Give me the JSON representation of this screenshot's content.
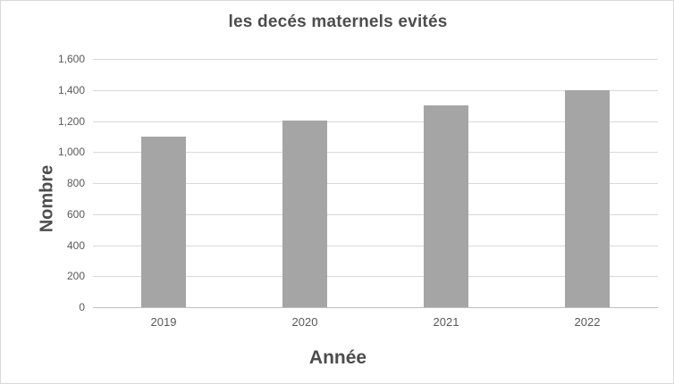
{
  "chart_data": {
    "type": "bar",
    "title": "les decés maternels evités",
    "xlabel": "Année",
    "ylabel": "Nombre",
    "categories": [
      "2019",
      "2020",
      "2021",
      "2022"
    ],
    "values": [
      1100,
      1200,
      1300,
      1400
    ],
    "ylim": [
      0,
      1600
    ],
    "ytick_interval": 200,
    "ytick_labels": [
      "0",
      "200",
      "400",
      "600",
      "800",
      "1,000",
      "1,200",
      "1,400",
      "1,600"
    ],
    "grid": true,
    "legend": false,
    "colors": {
      "bar": "#a5a5a5",
      "gridline": "#d9d9d9",
      "axis_line": "#bfbfbf",
      "title_text": "#4d4d4d",
      "tick_text": "#595959",
      "chart_border": "#d9d9d9",
      "background": "#ffffff"
    }
  }
}
